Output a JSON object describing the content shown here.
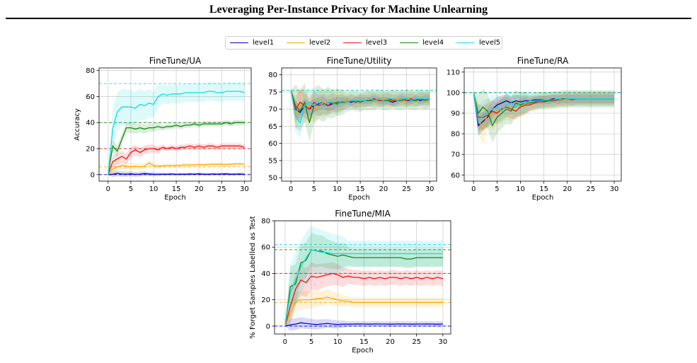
{
  "page": {
    "title": "Leveraging Per-Instance Privacy for Machine Unlearning"
  },
  "legend": [
    {
      "name": "level1",
      "color": "#0000cc"
    },
    {
      "name": "level2",
      "color": "#ffaa00"
    },
    {
      "name": "level3",
      "color": "#ee1111"
    },
    {
      "name": "level4",
      "color": "#118811"
    },
    {
      "name": "level5",
      "color": "#11dddd"
    }
  ],
  "chart_data": [
    {
      "type": "line",
      "title": "FineTune/UA",
      "xlabel": "Epoch",
      "ylabel": "Accuracy",
      "xlim": [
        -2,
        31.5
      ],
      "ylim": [
        -5,
        82
      ],
      "xticks": [
        0,
        5,
        10,
        15,
        20,
        25,
        30
      ],
      "yticks": [
        0,
        20,
        40,
        60,
        80
      ],
      "grid": true,
      "x": [
        0,
        1,
        2,
        3,
        4,
        5,
        6,
        7,
        8,
        9,
        10,
        11,
        12,
        13,
        14,
        15,
        16,
        17,
        18,
        19,
        20,
        21,
        22,
        23,
        24,
        25,
        26,
        27,
        28,
        29,
        30
      ],
      "series": [
        {
          "name": "level1",
          "color": "#0000cc",
          "band": 1.5,
          "reference": 0,
          "values": [
            0,
            0.3,
            1,
            0.5,
            0.4,
            0.6,
            0.2,
            0.4,
            0.8,
            0.5,
            0.3,
            0.2,
            0.4,
            0.3,
            0.5,
            0.2,
            0.4,
            0.3,
            0.5,
            0.4,
            0.6,
            0.4,
            0.3,
            0.5,
            0.4,
            0.5,
            0.6,
            0.3,
            0.4,
            0.5,
            0.3
          ]
        },
        {
          "name": "level2",
          "color": "#ffaa00",
          "band": 2,
          "reference": 6,
          "values": [
            0,
            4,
            6,
            7,
            6.5,
            6,
            6.5,
            6,
            6.5,
            9,
            7,
            6.5,
            6.8,
            7,
            7,
            7,
            7.2,
            7.5,
            7.4,
            7.5,
            7.8,
            7.6,
            7.8,
            8,
            7.9,
            8,
            7.8,
            8,
            8.2,
            8.3,
            8
          ]
        },
        {
          "name": "level3",
          "color": "#ee1111",
          "band": 3,
          "reference": 20,
          "values": [
            0,
            10,
            12,
            14,
            12,
            17,
            19,
            17,
            19,
            20,
            20,
            19,
            21,
            20,
            21,
            20,
            21,
            21,
            22,
            21,
            22,
            21,
            22,
            22,
            21,
            22,
            22,
            22,
            22,
            22,
            21
          ]
        },
        {
          "name": "level4",
          "color": "#118811",
          "band": 3,
          "reference": 40,
          "values": [
            0,
            22,
            18,
            27,
            36,
            36,
            35,
            36,
            35,
            36,
            36,
            37,
            36,
            37,
            37,
            38,
            37,
            38,
            38,
            39,
            38,
            39,
            39,
            39,
            39,
            39,
            40,
            39,
            40,
            40,
            40
          ]
        },
        {
          "name": "level5",
          "color": "#11dddd",
          "band": 10,
          "reference": 70,
          "values": [
            0,
            35,
            48,
            52,
            52,
            52,
            51,
            54,
            53,
            55,
            54,
            60,
            62,
            61,
            62,
            62,
            62,
            63,
            63,
            63,
            63,
            63,
            64,
            64,
            63,
            63,
            64,
            64,
            64,
            64,
            63
          ]
        }
      ]
    },
    {
      "type": "line",
      "title": "FineTune/Utility",
      "xlabel": "Epoch",
      "ylabel": "",
      "xlim": [
        -2,
        31.5
      ],
      "ylim": [
        49,
        82
      ],
      "xticks": [
        0,
        5,
        10,
        15,
        20,
        25,
        30
      ],
      "yticks": [
        50,
        55,
        60,
        65,
        70,
        75,
        80
      ],
      "grid": true,
      "x": [
        0,
        1,
        2,
        3,
        4,
        5,
        6,
        7,
        8,
        9,
        10,
        11,
        12,
        13,
        14,
        15,
        16,
        17,
        18,
        19,
        20,
        21,
        22,
        23,
        24,
        25,
        26,
        27,
        28,
        29,
        30
      ],
      "series": [
        {
          "name": "level1",
          "color": "#0000cc",
          "band": 1.5,
          "reference": 75.5,
          "values": [
            75.5,
            70,
            69,
            71,
            70,
            71,
            71.5,
            72,
            71,
            71.5,
            72,
            72,
            72.5,
            72,
            72.5,
            72.5,
            72.5,
            72.5,
            73,
            72.5,
            72.5,
            72.5,
            72,
            72.5,
            73,
            72.5,
            72.5,
            73,
            72.5,
            73,
            73
          ]
        },
        {
          "name": "level2",
          "color": "#ffaa00",
          "band": 3,
          "reference": 75.5,
          "values": [
            75.5,
            68,
            72,
            70,
            71,
            70,
            71,
            72,
            71.5,
            72,
            72,
            72,
            72.5,
            72.5,
            72,
            72.5,
            72.5,
            73,
            72.5,
            72.5,
            73,
            72.5,
            72.5,
            73,
            72.5,
            72.5,
            73,
            72.5,
            73,
            72.5,
            73
          ]
        },
        {
          "name": "level3",
          "color": "#ee1111",
          "band": 2.5,
          "reference": 75.5,
          "values": [
            75.5,
            70,
            72,
            71,
            70,
            72,
            71,
            71.5,
            71,
            72,
            71.5,
            72,
            72,
            72.5,
            72,
            72.5,
            72.5,
            72.5,
            73,
            72.5,
            72.5,
            73,
            72.5,
            72.5,
            73,
            72.5,
            73,
            72.5,
            73,
            73,
            73
          ]
        },
        {
          "name": "level4",
          "color": "#118811",
          "band": 4,
          "reference": 75.5,
          "values": [
            75.5,
            71,
            69.5,
            72,
            66,
            71,
            72,
            71,
            72,
            71.5,
            72,
            72,
            72,
            72.5,
            72.5,
            72,
            72.5,
            72.5,
            72.5,
            73,
            72.5,
            72.5,
            73,
            72.5,
            72.5,
            73,
            72.5,
            72.5,
            73,
            72.5,
            73
          ]
        },
        {
          "name": "level5",
          "color": "#11dddd",
          "band": 3,
          "reference": 75.5,
          "values": [
            75.5,
            68,
            66,
            71,
            72,
            71,
            72,
            71,
            72,
            72,
            71,
            72.5,
            72,
            72.5,
            72.5,
            72.5,
            72.5,
            73,
            72.5,
            73,
            72.5,
            73,
            73,
            72.5,
            73,
            73,
            72.5,
            73,
            73,
            73,
            73
          ]
        }
      ]
    },
    {
      "type": "line",
      "title": "FineTune/RA",
      "xlabel": "Epoch",
      "ylabel": "",
      "xlim": [
        -2,
        31.5
      ],
      "ylim": [
        57,
        112
      ],
      "xticks": [
        0,
        5,
        10,
        15,
        20,
        25,
        30
      ],
      "yticks": [
        60,
        70,
        80,
        90,
        100,
        110
      ],
      "grid": true,
      "x": [
        0,
        1,
        2,
        3,
        4,
        5,
        6,
        7,
        8,
        9,
        10,
        11,
        12,
        13,
        14,
        15,
        16,
        17,
        18,
        19,
        20,
        21,
        22,
        23,
        24,
        25,
        26,
        27,
        28,
        29,
        30
      ],
      "series": [
        {
          "name": "level1",
          "color": "#0000cc",
          "band": 3,
          "reference": 100,
          "values": [
            100,
            84,
            86,
            88,
            92,
            94,
            95,
            96,
            95,
            96,
            95.5,
            96,
            96,
            96.5,
            96.5,
            96.5,
            96.5,
            97,
            96.5,
            97,
            97,
            97,
            97,
            97,
            97,
            97,
            97,
            97,
            97,
            97,
            97
          ]
        },
        {
          "name": "level2",
          "color": "#ffaa00",
          "band": 5,
          "reference": 100,
          "values": [
            100,
            88,
            82,
            90,
            89,
            91,
            92,
            93,
            92,
            93,
            94,
            94,
            95,
            95,
            95.5,
            96,
            96,
            96,
            96.5,
            96.5,
            96.5,
            97,
            97,
            97,
            97,
            96.5,
            97,
            97,
            97,
            97,
            97
          ]
        },
        {
          "name": "level3",
          "color": "#ee1111",
          "band": 4,
          "reference": 100,
          "values": [
            100,
            88,
            88,
            89,
            91,
            90,
            92,
            93,
            92,
            91,
            93,
            94,
            94,
            95,
            95.5,
            95.5,
            96,
            96,
            96.5,
            96.5,
            97,
            96.5,
            97,
            97,
            97,
            97,
            97,
            97,
            97,
            97,
            97
          ]
        },
        {
          "name": "level4",
          "color": "#118811",
          "band": 6,
          "reference": 100,
          "values": [
            100,
            90,
            93,
            91,
            84,
            88,
            90,
            92,
            91,
            95,
            94,
            95,
            95,
            95.5,
            96,
            96,
            96,
            96.5,
            96.5,
            97,
            97,
            97,
            97,
            97,
            97,
            97,
            97,
            97,
            97,
            97,
            97
          ]
        },
        {
          "name": "level5",
          "color": "#11dddd",
          "band": 5,
          "reference": 100,
          "values": [
            100,
            86,
            89,
            90,
            92,
            93,
            91,
            94,
            95,
            93,
            95,
            95,
            96,
            96,
            96,
            96.5,
            96.5,
            96.5,
            97,
            96.5,
            97,
            97,
            97,
            97,
            97,
            97,
            97,
            97,
            97,
            97,
            97
          ]
        }
      ]
    },
    {
      "type": "line",
      "title": "FineTune/MIA",
      "xlabel": "Epoch",
      "ylabel": "% Forget Samples Labelled as Test",
      "xlim": [
        -2,
        31.5
      ],
      "ylim": [
        -6,
        80
      ],
      "xticks": [
        0,
        5,
        10,
        15,
        20,
        25,
        30
      ],
      "yticks": [
        0,
        20,
        40,
        60,
        80
      ],
      "grid": true,
      "x": [
        0,
        1,
        2,
        3,
        4,
        5,
        6,
        7,
        8,
        9,
        10,
        11,
        12,
        13,
        14,
        15,
        16,
        17,
        18,
        19,
        20,
        21,
        22,
        23,
        24,
        25,
        26,
        27,
        28,
        29,
        30
      ],
      "series": [
        {
          "name": "level1",
          "color": "#0000cc",
          "band": 3,
          "reference": 0,
          "values": [
            0,
            1,
            1.5,
            2.5,
            2,
            1.5,
            1.2,
            1.6,
            2,
            1.5,
            1.2,
            1.5,
            1.4,
            1.5,
            1.6,
            1.5,
            1.4,
            1.6,
            1.5,
            1.5,
            1.4,
            1.5,
            1.6,
            1.5,
            1.4,
            1.5,
            1.5,
            1.6,
            1.5,
            1.4,
            1.5
          ]
        },
        {
          "name": "level2",
          "color": "#ffaa00",
          "band": 5,
          "reference": 18,
          "values": [
            0,
            10,
            18,
            20,
            20,
            20,
            21,
            21,
            22,
            21,
            20,
            19,
            19,
            18,
            18,
            18,
            18,
            18,
            18,
            18,
            18,
            18,
            18,
            18,
            18,
            18,
            18,
            18,
            18,
            18,
            18
          ]
        },
        {
          "name": "level3",
          "color": "#ee1111",
          "band": 8,
          "reference": 40,
          "values": [
            0,
            15,
            28,
            35,
            33,
            38,
            37,
            38,
            39,
            40,
            39,
            37,
            38,
            37,
            37,
            36,
            37,
            36,
            37,
            36,
            37,
            37,
            36,
            37,
            36,
            37,
            36,
            37,
            36,
            37,
            36
          ]
        },
        {
          "name": "level4",
          "color": "#118811",
          "band": 10,
          "reference": 58,
          "values": [
            0,
            30,
            32,
            48,
            50,
            58,
            57,
            57,
            55,
            54,
            53,
            54,
            53,
            52,
            52,
            52,
            52,
            52,
            52,
            52,
            52,
            52,
            52,
            51,
            51,
            52,
            52,
            52,
            52,
            52,
            52
          ]
        },
        {
          "name": "level5",
          "color": "#11dddd",
          "band": 14,
          "reference": 62,
          "values": [
            0,
            25,
            35,
            45,
            52,
            58,
            57,
            56,
            56,
            55,
            55,
            55,
            55,
            55,
            55,
            55,
            55,
            55,
            55,
            55,
            55,
            55,
            55,
            55,
            55,
            55,
            55,
            55,
            55,
            55,
            55
          ]
        }
      ]
    }
  ]
}
